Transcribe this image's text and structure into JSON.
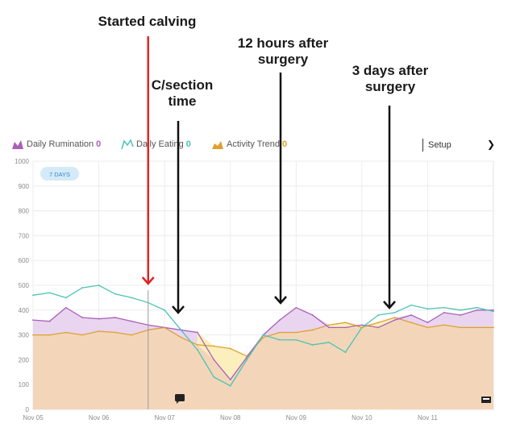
{
  "annotations": [
    {
      "text": "Started calving",
      "color": "#e02424"
    },
    {
      "text": "C/section time",
      "color": "#111111"
    },
    {
      "text": "12 hours after surgery",
      "color": "#111111"
    },
    {
      "text": "3 days after surgery",
      "color": "#111111"
    }
  ],
  "legend": {
    "rumination": {
      "label": "Daily Rumination",
      "count": "0",
      "color": "#a960b8"
    },
    "eating": {
      "label": "Daily Eating",
      "count": "0",
      "color": "#4cc3b5"
    },
    "activity": {
      "label": "Activity Trend",
      "count": "0",
      "color": "#e0a030"
    }
  },
  "controls": {
    "setup_label": "Setup",
    "range_badge": "7 DAYS"
  },
  "chart_data": {
    "type": "area",
    "title": "",
    "xlabel": "",
    "ylabel": "",
    "ylim": [
      0,
      1000
    ],
    "yticks": [
      0,
      100,
      200,
      300,
      400,
      500,
      600,
      700,
      800,
      900,
      1000
    ],
    "xticks": [
      "Nov 05",
      "Nov 06",
      "Nov 07",
      "Nov 08",
      "Nov 09",
      "Nov 10",
      "Nov 11"
    ],
    "grid": true,
    "colors": {
      "base_fill": "#f3d6b9",
      "rumination_fill": "#e9d5ef",
      "activity_fill": "#fbefbd",
      "eating_line": "#4cc3b5",
      "rumination_line": "#a960b8",
      "activity_line": "#e0a030"
    },
    "x": [
      0,
      0.25,
      0.5,
      0.75,
      1,
      1.25,
      1.5,
      1.75,
      2,
      2.25,
      2.5,
      2.75,
      3,
      3.25,
      3.5,
      3.75,
      4,
      4.25,
      4.5,
      4.75,
      5,
      5.25,
      5.5,
      5.75,
      6,
      6.25,
      6.5,
      6.75,
      7
    ],
    "series": [
      {
        "name": "Daily Rumination",
        "values": [
          360,
          355,
          410,
          370,
          365,
          370,
          355,
          340,
          330,
          320,
          310,
          200,
          120,
          210,
          300,
          360,
          410,
          380,
          330,
          330,
          340,
          330,
          360,
          380,
          350,
          390,
          380,
          400,
          400
        ]
      },
      {
        "name": "Daily Eating",
        "values": [
          460,
          470,
          450,
          490,
          500,
          465,
          450,
          430,
          400,
          320,
          240,
          130,
          95,
          200,
          300,
          280,
          280,
          260,
          270,
          230,
          330,
          380,
          390,
          420,
          405,
          410,
          400,
          410,
          395
        ]
      },
      {
        "name": "Activity Trend",
        "values": [
          300,
          300,
          310,
          300,
          315,
          310,
          300,
          320,
          330,
          290,
          260,
          255,
          245,
          215,
          290,
          310,
          310,
          320,
          340,
          350,
          330,
          350,
          370,
          350,
          330,
          340,
          330,
          330,
          330
        ]
      }
    ],
    "markers": [
      {
        "x": 1.75,
        "label": "Started calving"
      },
      {
        "x": 2.2,
        "label": "C/section time"
      },
      {
        "x": 3.75,
        "label": "12 hours after surgery"
      },
      {
        "x": 5.35,
        "label": "3 days after surgery"
      }
    ]
  }
}
